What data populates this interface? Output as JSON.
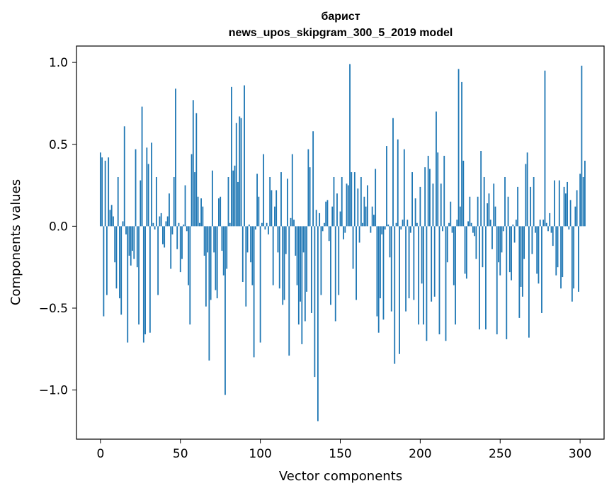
{
  "chart_data": {
    "type": "bar",
    "title_line1": "барист",
    "title_line2": "news_upos_skipgram_300_5_2019 model",
    "xlabel": "Vector components",
    "ylabel": "Components values",
    "xlim": [
      -15,
      315
    ],
    "ylim": [
      -1.3,
      1.1
    ],
    "xticks": [
      0,
      50,
      100,
      150,
      200,
      250,
      300
    ],
    "yticks": [
      -1.0,
      -0.5,
      0.0,
      0.5,
      1.0
    ],
    "ytick_labels": [
      "−1.0",
      "−0.5",
      "0.0",
      "0.5",
      "1.0"
    ],
    "xtick_labels": [
      "0",
      "50",
      "100",
      "150",
      "200",
      "250",
      "300"
    ],
    "bar_color": "#1f77b4",
    "x_start": 0,
    "values": [
      0.45,
      0.42,
      -0.55,
      0.4,
      -0.42,
      0.42,
      0.1,
      0.13,
      0.06,
      -0.22,
      -0.38,
      0.3,
      -0.44,
      -0.54,
      0.03,
      0.61,
      -0.05,
      -0.71,
      -0.18,
      -0.24,
      -0.15,
      -0.2,
      0.47,
      -0.25,
      -0.6,
      0.28,
      0.73,
      -0.71,
      -0.66,
      0.48,
      0.38,
      -0.65,
      0.51,
      0.02,
      -0.02,
      0.3,
      -0.42,
      0.06,
      0.08,
      -0.11,
      -0.13,
      0.03,
      0.06,
      0.2,
      -0.26,
      -0.05,
      0.3,
      0.84,
      -0.14,
      0.02,
      -0.28,
      -0.2,
      0.01,
      0.25,
      -0.03,
      -0.36,
      -0.6,
      0.44,
      0.77,
      0.33,
      0.69,
      0.18,
      0.02,
      0.17,
      0.12,
      -0.18,
      -0.49,
      -0.16,
      -0.82,
      -0.45,
      0.34,
      -0.16,
      -0.39,
      -0.44,
      0.17,
      0.18,
      -0.15,
      -0.3,
      -1.03,
      -0.26,
      0.3,
      0.02,
      0.85,
      0.34,
      0.37,
      0.63,
      0.27,
      0.67,
      0.66,
      -0.34,
      0.86,
      -0.49,
      -0.16,
      0.01,
      -0.22,
      -0.36,
      -0.8,
      -0.02,
      0.32,
      0.18,
      -0.71,
      0.02,
      0.44,
      -0.02,
      0.02,
      -0.05,
      0.3,
      0.22,
      -0.36,
      0.12,
      0.22,
      -0.16,
      -0.38,
      0.33,
      -0.48,
      -0.45,
      -0.17,
      0.29,
      -0.79,
      0.05,
      0.44,
      0.04,
      -0.18,
      -0.36,
      -0.6,
      -0.46,
      -0.72,
      -0.16,
      -0.58,
      -0.4,
      0.47,
      0.36,
      -0.53,
      0.58,
      -0.92,
      0.1,
      -1.19,
      0.08,
      -0.42,
      -0.03,
      0.02,
      0.15,
      0.16,
      -0.09,
      -0.48,
      0.12,
      0.3,
      -0.58,
      0.2,
      -0.42,
      0.09,
      0.3,
      -0.08,
      -0.04,
      0.26,
      0.25,
      0.99,
      0.33,
      -0.26,
      0.33,
      -0.45,
      0.23,
      -0.1,
      0.3,
      0.02,
      0.18,
      0.12,
      0.25,
      0.0,
      -0.04,
      0.12,
      0.07,
      0.35,
      -0.55,
      -0.65,
      -0.44,
      -0.05,
      -0.57,
      -0.02,
      0.49,
      0.01,
      -0.19,
      -0.52,
      0.66,
      -0.84,
      0.02,
      0.53,
      -0.78,
      -0.02,
      0.04,
      0.47,
      -0.52,
      0.04,
      -0.44,
      -0.04,
      0.33,
      -0.45,
      0.17,
      0.02,
      -0.6,
      0.24,
      -0.35,
      -0.6,
      0.36,
      -0.7,
      0.43,
      0.35,
      -0.46,
      0.26,
      -0.43,
      0.7,
      0.45,
      -0.66,
      0.26,
      -0.03,
      0.43,
      -0.7,
      -0.22,
      0.02,
      0.15,
      -0.04,
      -0.36,
      -0.6,
      0.04,
      0.96,
      0.12,
      0.88,
      0.4,
      -0.29,
      -0.32,
      0.03,
      0.18,
      0.02,
      -0.04,
      -0.06,
      -0.2,
      0.18,
      -0.63,
      0.46,
      -0.25,
      0.3,
      -0.63,
      0.14,
      0.2,
      0.04,
      -0.14,
      0.26,
      0.12,
      -0.66,
      -0.22,
      -0.3,
      -0.16,
      -0.03,
      0.3,
      -0.69,
      0.18,
      -0.28,
      -0.33,
      0.01,
      -0.1,
      0.04,
      0.24,
      -0.56,
      -0.37,
      -0.43,
      -0.2,
      0.38,
      0.45,
      -0.68,
      0.24,
      -0.17,
      0.3,
      -0.04,
      -0.29,
      -0.35,
      0.04,
      -0.53,
      0.04,
      0.95,
      0.02,
      -0.03,
      0.08,
      -0.04,
      -0.12,
      0.28,
      -0.3,
      -0.25,
      0.28,
      -0.38,
      -0.31,
      0.24,
      0.2,
      0.27,
      -0.02,
      0.16,
      -0.46,
      -0.38,
      0.12,
      0.22,
      -0.4,
      0.32,
      0.98,
      0.3,
      0.4
    ]
  }
}
